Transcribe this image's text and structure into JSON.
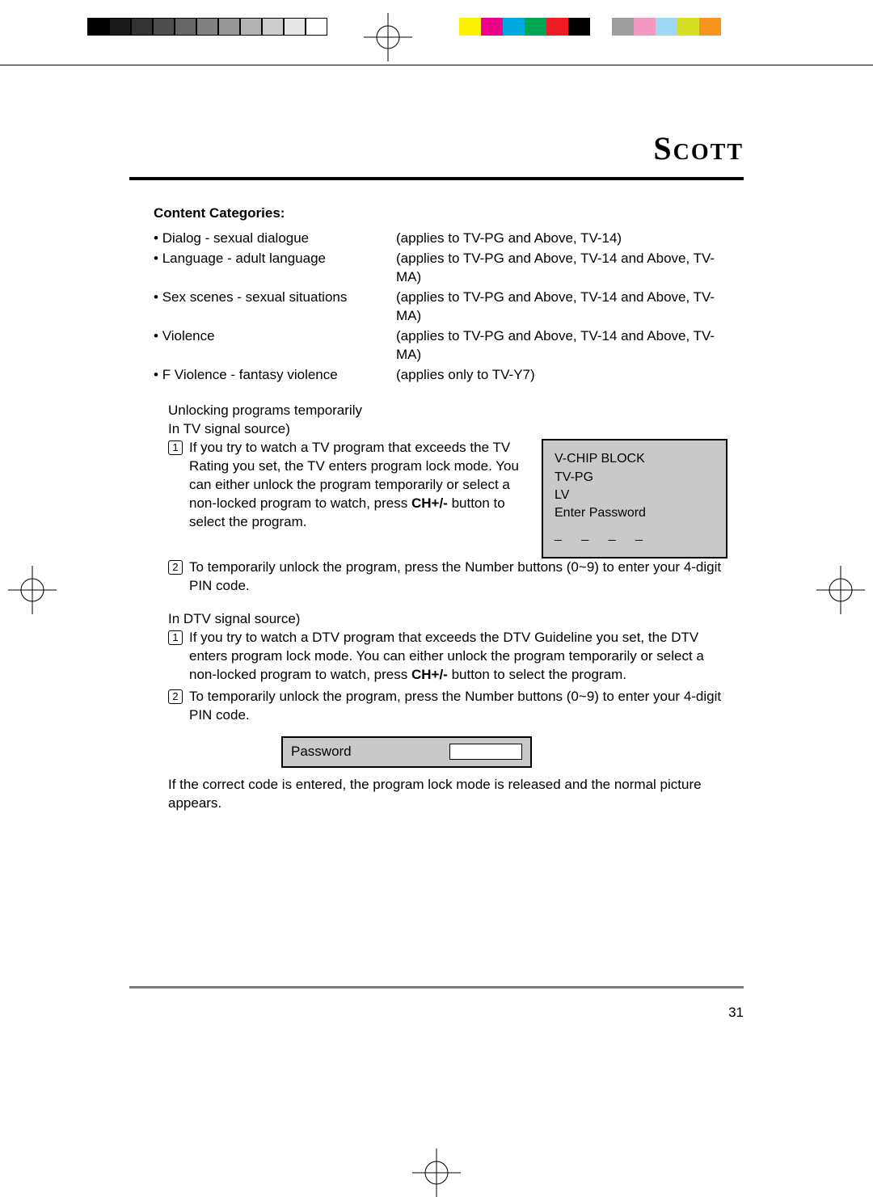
{
  "brand": "Scott",
  "page_number": "31",
  "printer_marks": {
    "gray_ramp": [
      "#000000",
      "#1a1a1a",
      "#333333",
      "#4d4d4d",
      "#666666",
      "#808080",
      "#999999",
      "#b3b3b3",
      "#cccccc",
      "#e6e6e6",
      "#ffffff"
    ],
    "color_ramp": [
      "#fff200",
      "#ec008c",
      "#00a9e0",
      "#00a651",
      "#ed1c24",
      "#000000",
      "#ffffff",
      "#9e9e9e",
      "#f49ac1",
      "#a0d9f6",
      "#d7df23",
      "#f7941d"
    ]
  },
  "section_title": "Content Categories:",
  "categories": [
    {
      "name": "Dialog - sexual dialogue",
      "applies": "(applies to TV-PG and Above, TV-14)"
    },
    {
      "name": "Language - adult language",
      "applies": "(applies to TV-PG and Above, TV-14 and Above, TV-MA)"
    },
    {
      "name": "Sex scenes - sexual situations",
      "applies": "(applies to TV-PG and Above, TV-14 and Above, TV-MA)"
    },
    {
      "name": "Violence",
      "applies": "(applies to TV-PG and Above, TV-14 and Above, TV-MA)"
    },
    {
      "name": "F Violence - fantasy violence",
      "applies": "(applies only to TV-Y7)"
    }
  ],
  "unlock_heading": "Unlocking programs temporarily",
  "tv_source_label": "In TV signal source)",
  "tv_steps": [
    {
      "n": "1",
      "pre": "If you try to watch a TV program that exceeds the TV Rating you set, the TV enters program lock mode. You can either unlock the program temporarily or select a non-locked program to watch, press ",
      "bold": "CH+/-",
      "post": " button to select the program."
    },
    {
      "n": "2",
      "pre": "To temporarily unlock the program, press the Number buttons (0~9) to enter your 4-digit PIN code.",
      "bold": "",
      "post": ""
    }
  ],
  "dtv_source_label": "In DTV signal source)",
  "dtv_steps": [
    {
      "n": "1",
      "pre": "If you try to watch a DTV program that exceeds the DTV Guideline you set, the DTV enters program lock mode. You can either unlock the program temporarily or select a non-locked program to watch, press ",
      "bold": "CH+/-",
      "post": " button to select the program."
    },
    {
      "n": "2",
      "pre": "To temporarily unlock the program, press the Number buttons (0~9) to enter your 4-digit PIN code.",
      "bold": "",
      "post": ""
    }
  ],
  "vchip": {
    "line1": "V-CHIP BLOCK",
    "line2": "TV-PG",
    "line3": "LV",
    "line4": "Enter Password",
    "dashes": "_ _ _ _"
  },
  "password_box_label": "Password",
  "closing_text": "If the correct code is entered, the program lock mode is released and the normal picture appears."
}
